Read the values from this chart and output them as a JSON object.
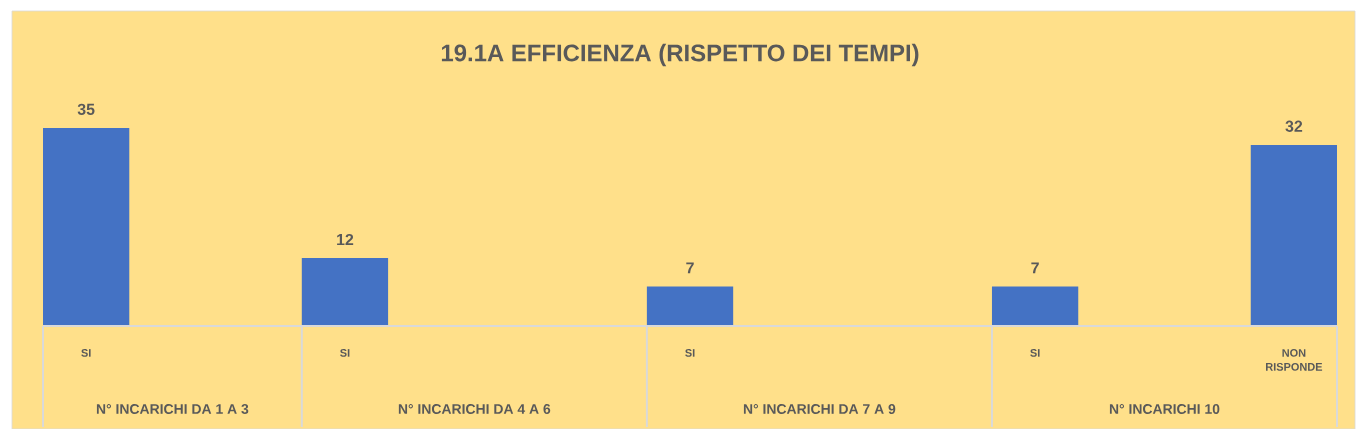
{
  "chart_data": {
    "type": "bar",
    "title": "19.1A EFFICIENZA (RISPETTO DEI TEMPI)",
    "categories": [
      "SI",
      null,
      null,
      "SI",
      null,
      null,
      null,
      "SI",
      null,
      null,
      null,
      "SI",
      null,
      null,
      "NON RISPONDE"
    ],
    "values": [
      35,
      null,
      null,
      12,
      null,
      null,
      null,
      7,
      null,
      null,
      null,
      7,
      null,
      null,
      32
    ],
    "color": "#4472c4",
    "data_labels": true,
    "annotations": [
      "N° INCARICHI DA 1 A 3",
      "N° INCARICHI DA 4 A 6",
      "N° INCARICHI DA 7 A 9",
      "N° INCARICHI 10"
    ]
  }
}
